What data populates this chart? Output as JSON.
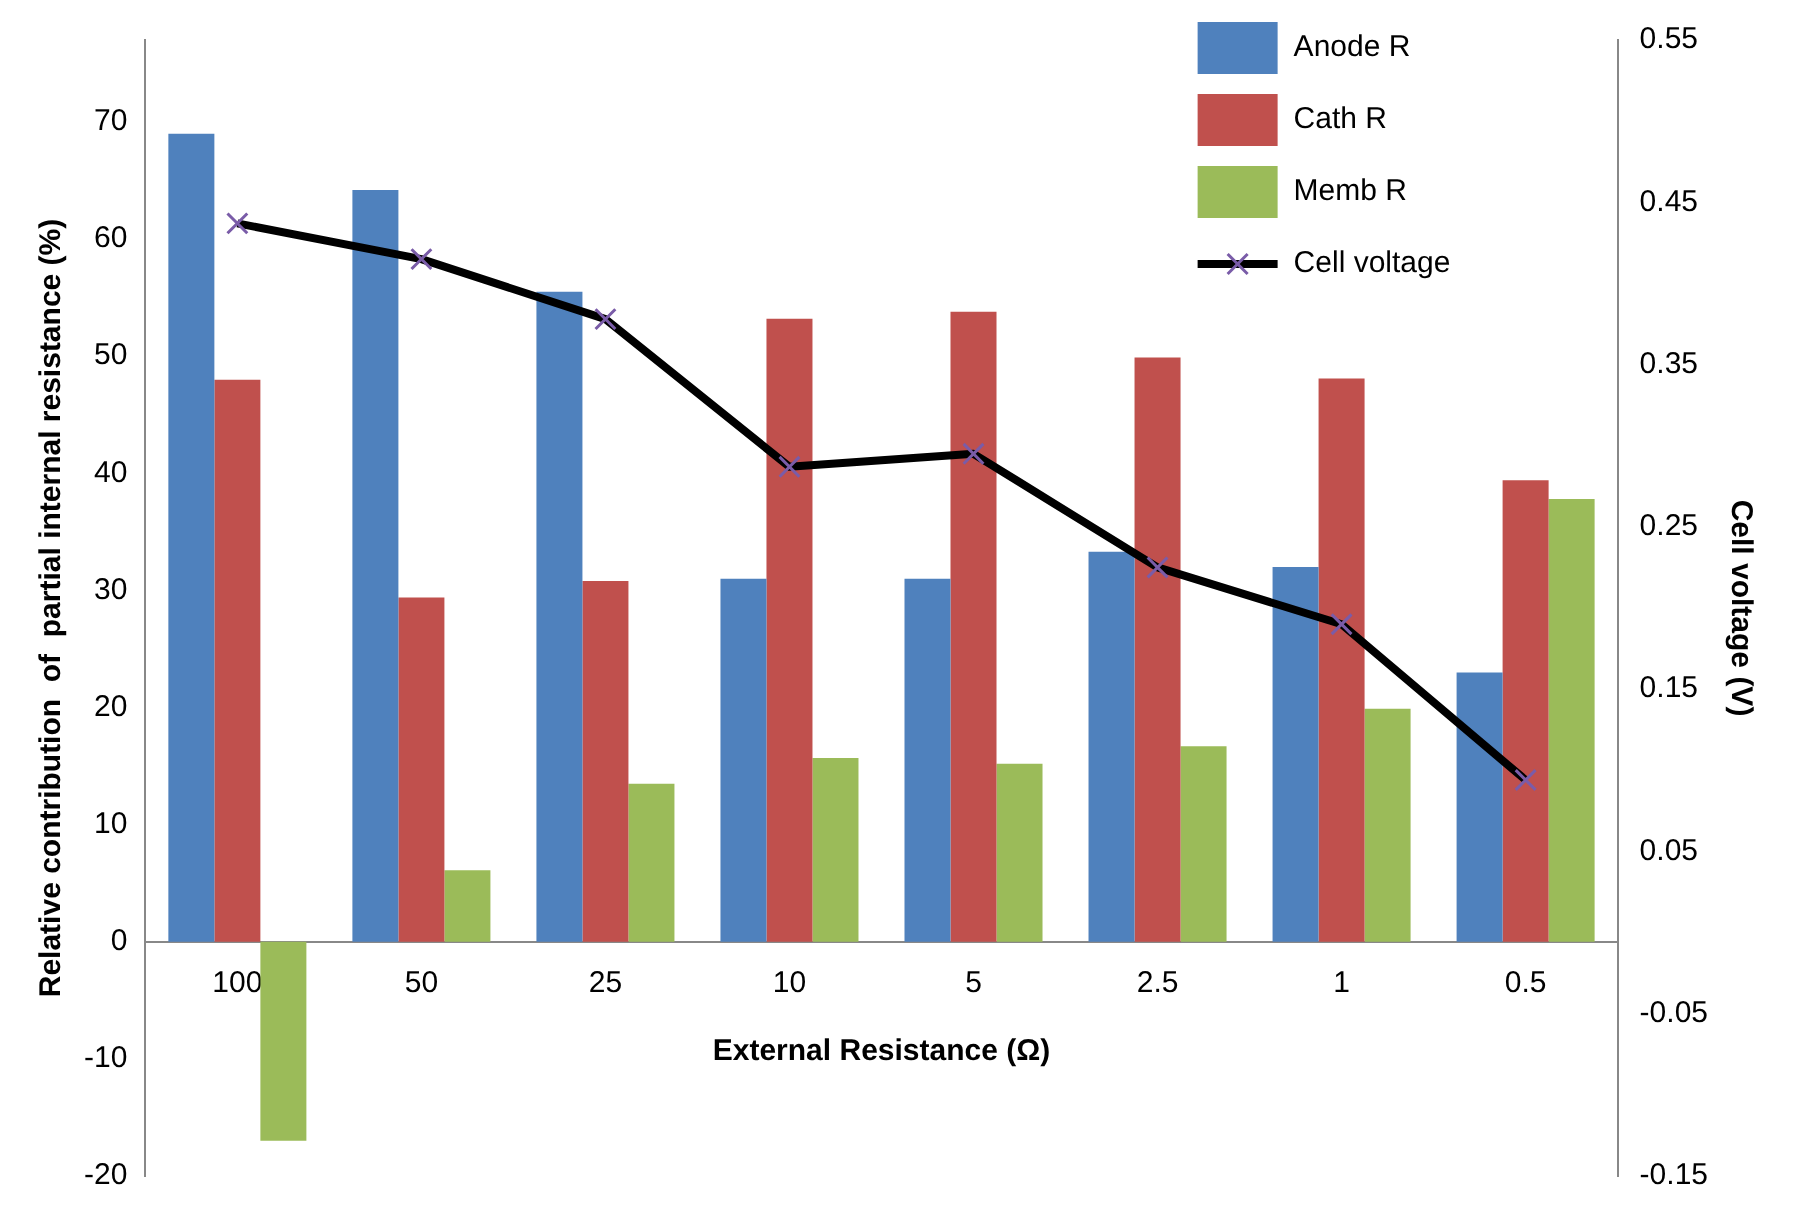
{
  "chart_data": {
    "type": "bar",
    "xlabel": "External Resistance (Ω)",
    "ylabel": "Relative contribution  of  partial internal resistance (%)",
    "y2label": "Cell voltage (V)",
    "categories": [
      "100",
      "50",
      "25",
      "10",
      "5",
      "2.5",
      "1",
      "0.5"
    ],
    "series": [
      {
        "name": "Anode R",
        "color": "#4f81bd",
        "values": [
          69,
          64.2,
          55.5,
          31,
          31,
          33.3,
          32,
          23
        ]
      },
      {
        "name": "Cath R",
        "color": "#c0504d",
        "values": [
          48,
          29.4,
          30.8,
          53.2,
          53.8,
          49.9,
          48.1,
          39.4
        ]
      },
      {
        "name": "Memb R",
        "color": "#9bbb59",
        "values": [
          -17,
          6.1,
          13.5,
          15.7,
          15.2,
          16.7,
          19.9,
          37.8
        ]
      },
      {
        "name": "Cell voltage",
        "type": "line",
        "axis": "y2",
        "color": "#000000",
        "marker": "cross",
        "values": [
          0.437,
          0.415,
          0.378,
          0.287,
          0.295,
          0.225,
          0.19,
          0.094
        ]
      }
    ],
    "ylim": [
      -20,
      77
    ],
    "yticks": [
      -20,
      -10,
      0,
      10,
      20,
      30,
      40,
      50,
      60,
      70
    ],
    "y2lim": [
      -0.15,
      0.55
    ],
    "y2ticks": [
      -0.15,
      -0.05,
      0.05,
      0.15,
      0.25,
      0.35,
      0.45,
      0.55
    ],
    "grid": false,
    "legend": "top right"
  }
}
